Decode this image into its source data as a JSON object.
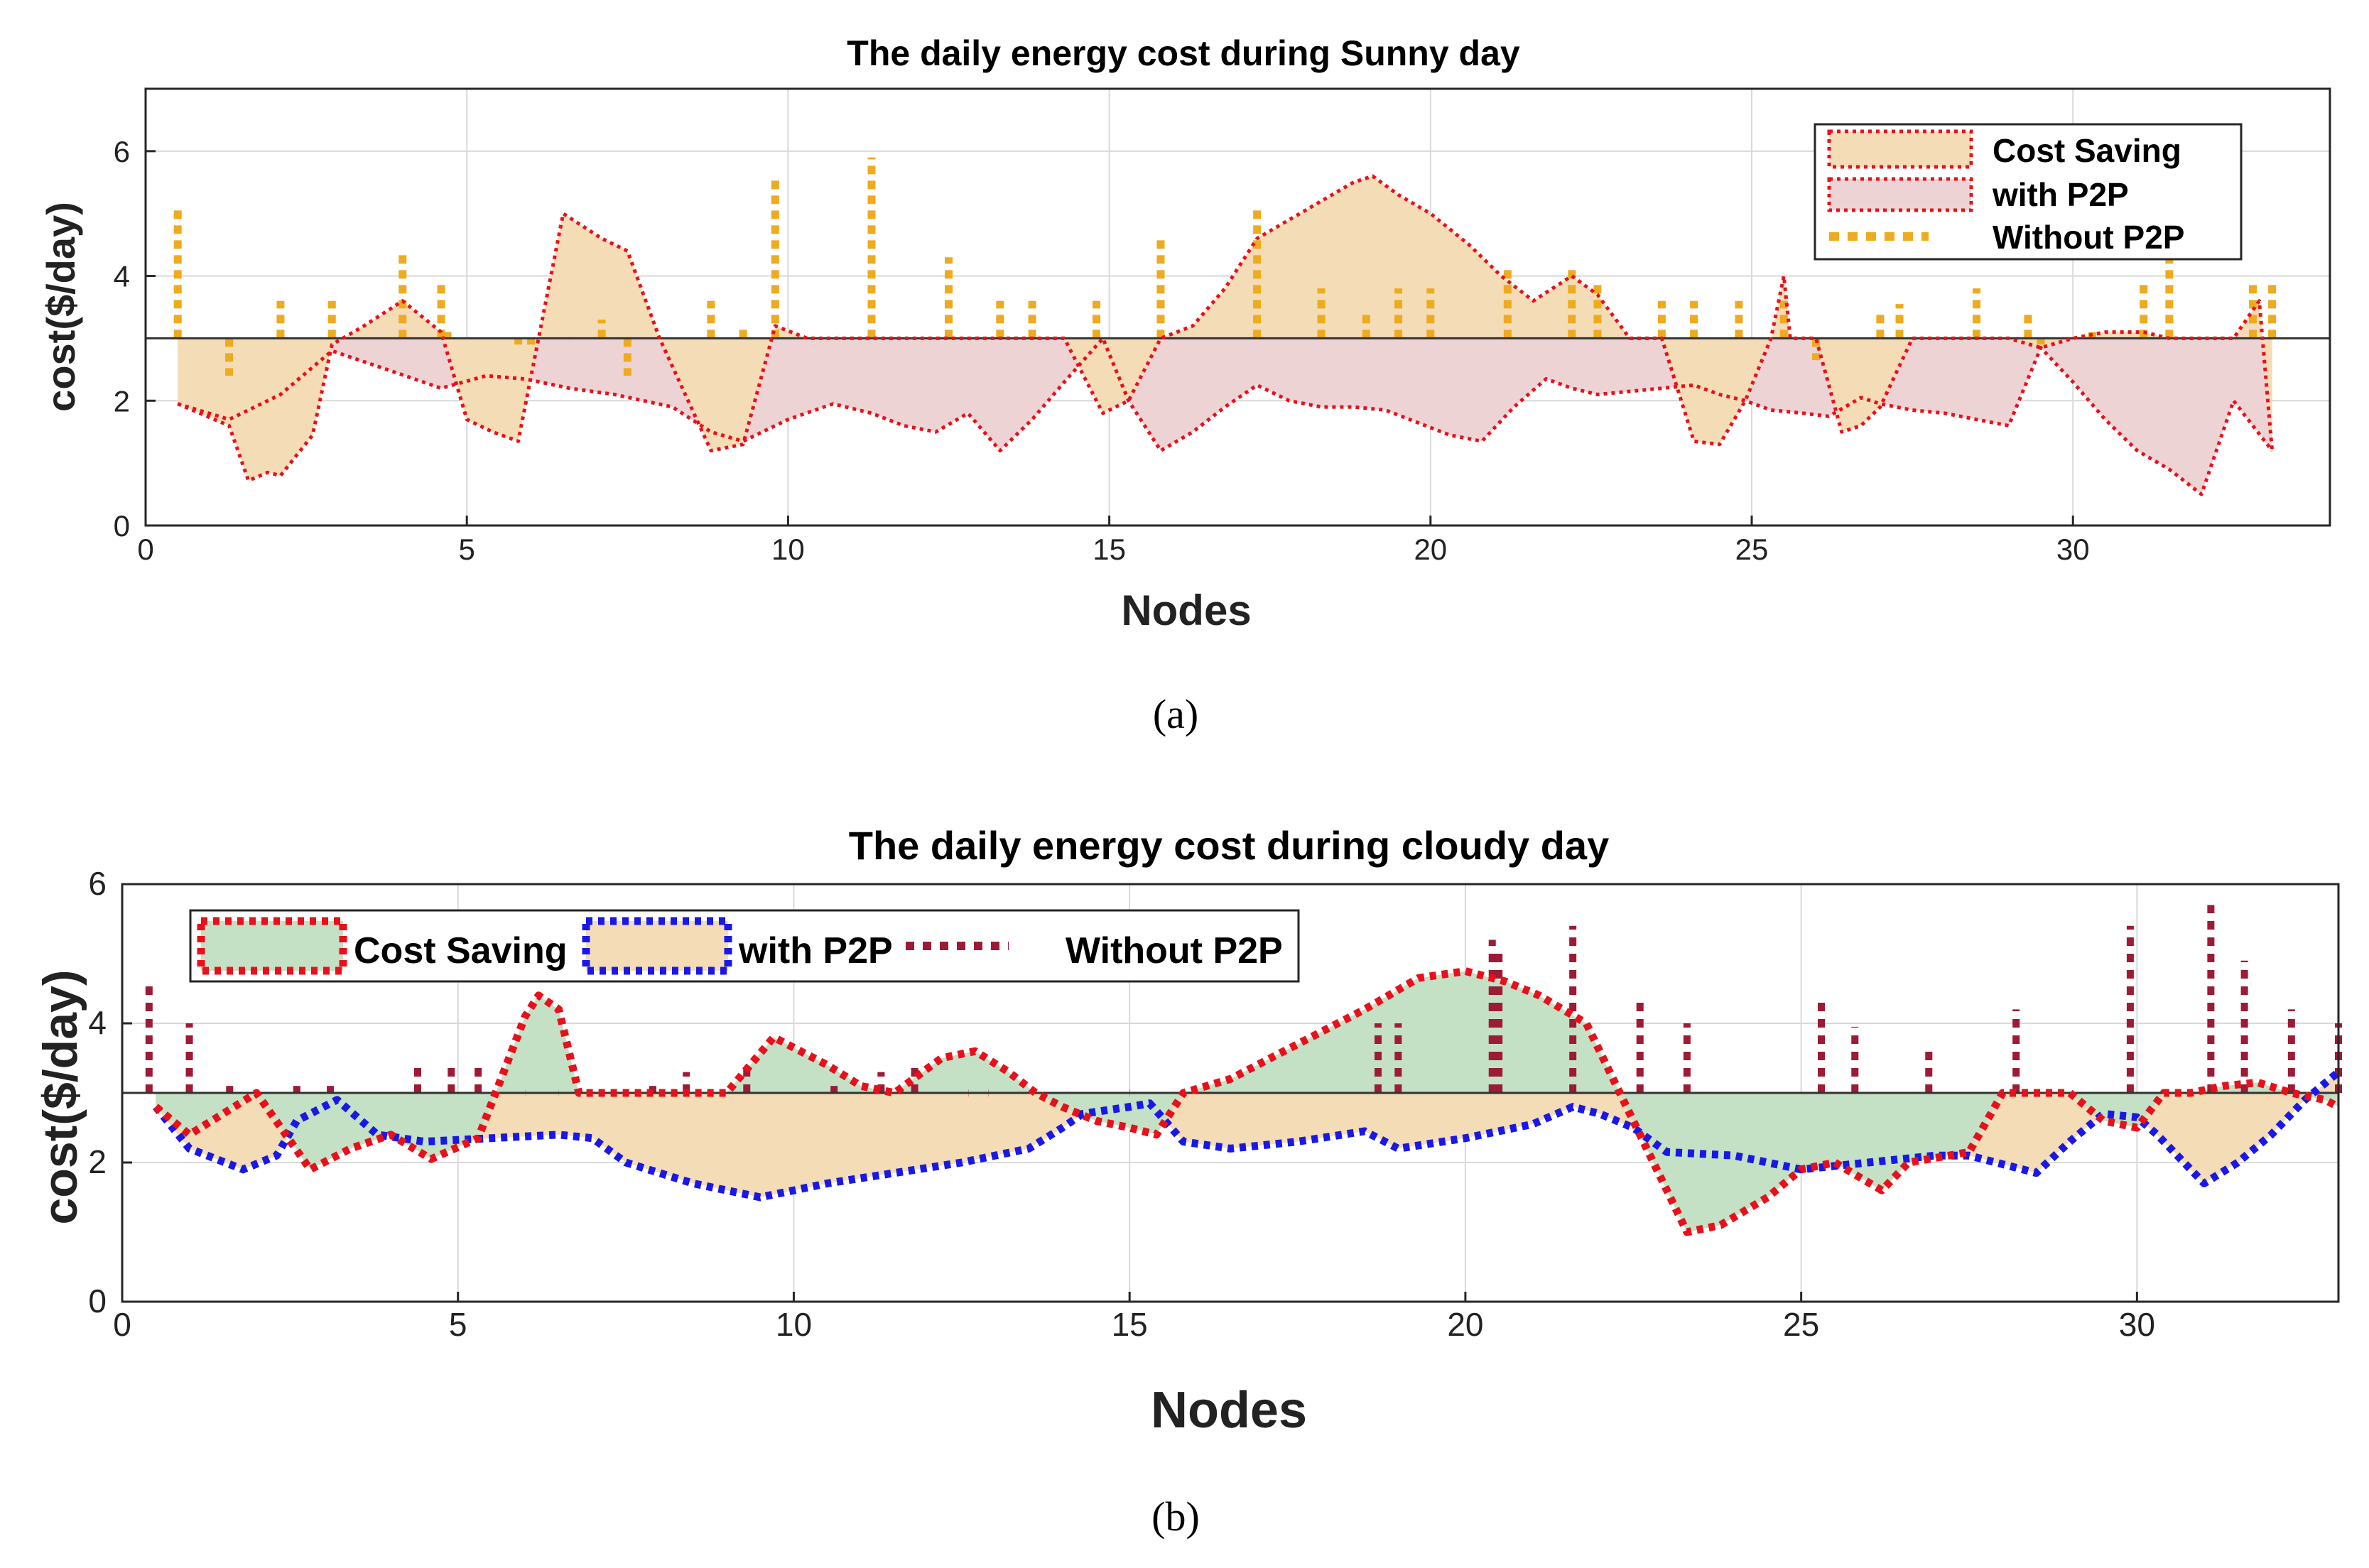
{
  "panels": [
    {
      "caption": "(a)",
      "chart_data": {
        "type": "area",
        "title": "The daily energy cost during Sunny day",
        "xlabel": "Nodes",
        "ylabel": "cost($/day)",
        "xlim": [
          0,
          34
        ],
        "ylim": [
          0,
          7
        ],
        "xticks": [
          0,
          5,
          10,
          15,
          20,
          25,
          30
        ],
        "yticks": [
          0,
          2,
          4,
          6
        ],
        "baseline": 3,
        "grid": true,
        "legend_position": "top-right",
        "legend": [
          "Cost Saving",
          "with P2P",
          "Without P2P"
        ],
        "colors": {
          "cost_saving_fill": "#f3dcb6",
          "with_p2p_fill": "#eed3d5",
          "saving_line": "#e8101b",
          "with_p2p_line": "#e8101b",
          "without_p2p": "#eeab1f"
        },
        "series": [
          {
            "name": "Cost Saving",
            "x": [
              0.5,
              1.3,
              1.6,
              1.9,
              2.1,
              2.6,
              2.9,
              3.4,
              4.0,
              4.6,
              5.0,
              5.4,
              5.8,
              6.5,
              7.1,
              7.5,
              8.0,
              8.8,
              9.3,
              9.8,
              10.3,
              10.8,
              11.3,
              11.8,
              12.3,
              12.8,
              13.3,
              13.8,
              14.3,
              14.9,
              15.3,
              15.8,
              16.3,
              16.8,
              17.3,
              17.8,
              18.3,
              18.8,
              19.1,
              19.5,
              20.0,
              20.6,
              21.1,
              21.6,
              22.2,
              22.6,
              23.1,
              23.6,
              24.1,
              24.5,
              24.9,
              25.3,
              25.5,
              25.6,
              26.0,
              26.4,
              26.7,
              27.0,
              27.5,
              28.0,
              28.5,
              29.0,
              29.5,
              30.0,
              30.5,
              30.8,
              31.1,
              31.5,
              32.0,
              32.5,
              32.9,
              33.1
            ],
            "y": [
              1.95,
              1.6,
              0.72,
              0.85,
              0.8,
              1.45,
              2.9,
              3.2,
              3.6,
              3.1,
              1.7,
              1.5,
              1.35,
              5.0,
              4.6,
              4.4,
              3.0,
              1.2,
              1.3,
              3.2,
              3.0,
              3.0,
              3.0,
              3.0,
              3.0,
              3.0,
              3.0,
              3.0,
              3.0,
              1.8,
              2.0,
              3.0,
              3.2,
              3.8,
              4.6,
              4.9,
              5.2,
              5.5,
              5.6,
              5.3,
              5.0,
              4.5,
              4.0,
              3.6,
              4.0,
              3.7,
              3.0,
              3.0,
              1.35,
              1.3,
              2.0,
              3.0,
              4.0,
              3.0,
              3.0,
              1.5,
              1.6,
              1.9,
              3.0,
              3.0,
              3.0,
              3.0,
              2.85,
              3.0,
              3.1,
              3.1,
              3.1,
              3.0,
              3.0,
              3.0,
              3.6,
              1.2
            ]
          },
          {
            "name": "with P2P",
            "x": [
              0.5,
              1.3,
              2.1,
              2.9,
              3.9,
              4.6,
              5.3,
              5.9,
              6.6,
              7.3,
              8.2,
              8.8,
              9.3,
              10.0,
              10.7,
              11.3,
              11.8,
              12.3,
              12.8,
              13.3,
              13.8,
              14.3,
              14.9,
              15.3,
              15.8,
              16.3,
              16.8,
              17.3,
              17.8,
              18.3,
              18.8,
              19.3,
              19.8,
              20.3,
              20.8,
              21.3,
              21.8,
              22.2,
              22.6,
              23.1,
              23.6,
              24.1,
              24.5,
              24.9,
              25.3,
              25.8,
              26.2,
              26.7,
              27.0,
              27.5,
              28.0,
              28.5,
              29.0,
              29.5,
              30.0,
              30.5,
              31.0,
              31.5,
              32.0,
              32.5,
              33.1
            ],
            "y": [
              1.95,
              1.7,
              2.1,
              2.8,
              2.45,
              2.2,
              2.4,
              2.35,
              2.2,
              2.1,
              1.9,
              1.5,
              1.35,
              1.7,
              1.95,
              1.8,
              1.6,
              1.5,
              1.8,
              1.2,
              1.7,
              2.3,
              3.0,
              2.0,
              1.2,
              1.5,
              1.9,
              2.25,
              2.0,
              1.9,
              1.9,
              1.85,
              1.65,
              1.45,
              1.35,
              1.9,
              2.35,
              2.2,
              2.1,
              2.15,
              2.2,
              2.25,
              2.1,
              2.0,
              1.85,
              1.8,
              1.75,
              2.05,
              1.95,
              1.85,
              1.8,
              1.7,
              1.6,
              2.85,
              2.3,
              1.7,
              1.2,
              0.9,
              0.5,
              2.0,
              1.2
            ]
          },
          {
            "name": "Without P2P",
            "x": [
              0.5,
              1.3,
              2.1,
              2.9,
              4.0,
              4.6,
              4.7,
              5.8,
              6.0,
              6.6,
              7.1,
              7.5,
              8.8,
              9.3,
              9.8,
              10.8,
              11.3,
              12.5,
              13.3,
              13.8,
              14.8,
              15.8,
              17.3,
              18.3,
              19.0,
              19.5,
              20.0,
              21.2,
              22.2,
              22.6,
              23.6,
              24.1,
              24.8,
              25.5,
              26.0,
              27.0,
              27.3,
              28.5,
              29.3,
              29.5,
              30.3,
              31.1,
              31.5,
              32.8,
              33.1
            ],
            "y": [
              5.05,
              2.4,
              3.6,
              3.6,
              4.4,
              3.9,
              3.1,
              2.9,
              2.9,
              3.0,
              3.3,
              2.4,
              3.6,
              3.2,
              5.6,
              3.0,
              5.9,
              4.3,
              3.6,
              3.6,
              3.6,
              4.6,
              5.1,
              3.8,
              3.4,
              3.8,
              3.8,
              4.1,
              4.1,
              3.9,
              3.6,
              3.6,
              3.6,
              3.6,
              2.65,
              3.4,
              3.55,
              3.8,
              3.4,
              2.9,
              3.1,
              3.9,
              4.3,
              3.9,
              3.9
            ]
          }
        ]
      }
    },
    {
      "caption": "(b)",
      "chart_data": {
        "type": "area",
        "title": "The daily energy cost during cloudy day",
        "xlabel": "Nodes",
        "ylabel": "cost($/day)",
        "xlim": [
          0,
          33
        ],
        "ylim": [
          0,
          6
        ],
        "xticks": [
          0,
          5,
          10,
          15,
          20,
          25,
          30
        ],
        "yticks": [
          0,
          2,
          4,
          6
        ],
        "baseline": 3,
        "grid": true,
        "legend_position": "top-left",
        "legend": [
          "Cost Saving",
          "with P2P",
          "Without P2P"
        ],
        "colors": {
          "cost_saving_fill": "#c4e1c5",
          "with_p2p_fill": "#f3dcb6",
          "saving_line": "#e8101b",
          "with_p2p_line": "#1a18e6",
          "without_p2p": "#9c1b35"
        },
        "series": [
          {
            "name": "Cost Saving",
            "x": [
              0.5,
              1.0,
              2.0,
              2.8,
              3.4,
              4.0,
              4.6,
              5.3,
              6.0,
              6.2,
              6.5,
              6.8,
              7.5,
              8.3,
              9.0,
              9.7,
              10.5,
              11.0,
              11.5,
              12.2,
              12.7,
              13.2,
              13.6,
              14.0,
              14.5,
              15.0,
              15.4,
              15.8,
              16.5,
              17.5,
              18.5,
              19.3,
              20.0,
              20.6,
              21.1,
              21.8,
              22.3,
              22.9,
              23.3,
              23.8,
              24.5,
              25.0,
              25.5,
              26.2,
              26.6,
              27.5,
              28.0,
              28.5,
              29.0,
              29.5,
              30.0,
              30.4,
              30.8,
              31.3,
              31.8,
              32.3,
              32.8,
              33.0
            ],
            "y": [
              2.8,
              2.4,
              3.0,
              1.9,
              2.2,
              2.4,
              2.05,
              2.35,
              4.1,
              4.4,
              4.2,
              3.0,
              3.0,
              3.0,
              3.0,
              3.8,
              3.4,
              3.1,
              3.0,
              3.5,
              3.6,
              3.3,
              3.0,
              2.8,
              2.6,
              2.5,
              2.4,
              3.0,
              3.2,
              3.7,
              4.2,
              4.65,
              4.75,
              4.6,
              4.4,
              4.0,
              3.0,
              1.8,
              1.0,
              1.1,
              1.5,
              1.9,
              2.0,
              1.6,
              2.0,
              2.15,
              3.0,
              3.0,
              3.0,
              2.6,
              2.5,
              3.0,
              3.0,
              3.1,
              3.15,
              3.0,
              2.9,
              2.8
            ]
          },
          {
            "name": "with P2P",
            "x": [
              0.5,
              1.0,
              1.8,
              2.3,
              2.6,
              3.0,
              3.2,
              3.8,
              4.5,
              5.5,
              6.5,
              7.0,
              7.5,
              8.5,
              9.5,
              10.0,
              10.5,
              11.5,
              12.5,
              13.5,
              14.0,
              14.3,
              15.0,
              15.3,
              15.8,
              16.5,
              17.0,
              17.5,
              18.5,
              19.0,
              20.0,
              21.0,
              21.6,
              22.0,
              22.5,
              23.0,
              24.0,
              25.0,
              26.0,
              27.0,
              27.5,
              28.5,
              29.0,
              29.5,
              30.0,
              30.3,
              31.0,
              31.5,
              32.0,
              32.5,
              33.0
            ],
            "y": [
              2.8,
              2.2,
              1.9,
              2.1,
              2.6,
              2.8,
              2.9,
              2.4,
              2.3,
              2.35,
              2.4,
              2.35,
              2.0,
              1.7,
              1.5,
              1.6,
              1.7,
              1.85,
              2.0,
              2.2,
              2.5,
              2.7,
              2.8,
              2.85,
              2.3,
              2.2,
              2.25,
              2.3,
              2.45,
              2.2,
              2.35,
              2.55,
              2.8,
              2.7,
              2.5,
              2.15,
              2.1,
              1.9,
              2.0,
              2.1,
              2.1,
              1.85,
              2.3,
              2.7,
              2.65,
              2.4,
              1.7,
              2.0,
              2.4,
              2.9,
              3.3
            ]
          },
          {
            "name": "Without P2P",
            "x": [
              0.4,
              1.0,
              1.6,
              2.6,
              3.1,
              4.4,
              4.9,
              5.3,
              6.0,
              6.5,
              7.5,
              7.9,
              8.4,
              9.3,
              10.6,
              11.3,
              11.8,
              12.6,
              12.9,
              15.0,
              18.7,
              19.0,
              20.4,
              20.5,
              21.6,
              22.6,
              23.3,
              25.3,
              25.8,
              26.9,
              28.2,
              29.9,
              31.1,
              31.6,
              32.3,
              33.0
            ],
            "y": [
              4.6,
              4.0,
              3.1,
              3.1,
              3.1,
              3.4,
              3.4,
              3.4,
              3.0,
              3.0,
              3.0,
              3.1,
              3.3,
              3.4,
              3.1,
              3.3,
              3.4,
              3.0,
              3.0,
              3.0,
              4.0,
              4.0,
              5.2,
              5.0,
              5.4,
              4.3,
              4.0,
              4.3,
              3.95,
              3.6,
              4.2,
              5.4,
              5.7,
              4.9,
              4.2,
              4.0
            ]
          }
        ]
      }
    }
  ]
}
